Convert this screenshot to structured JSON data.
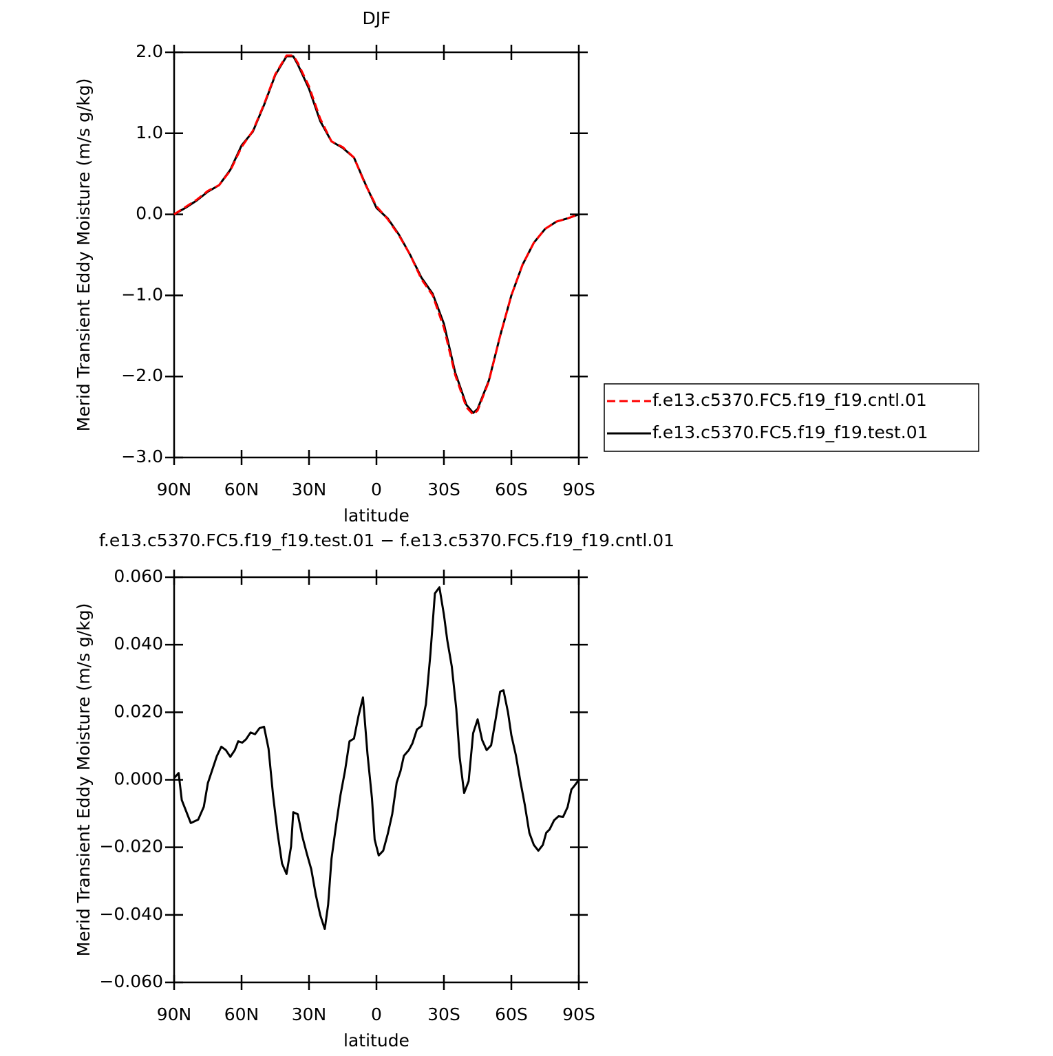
{
  "chart_data": [
    {
      "type": "line",
      "title": "DJF",
      "xlabel": "latitude",
      "ylabel": "Merid Transient Eddy Moisture (m/s g/kg)",
      "x": [
        90,
        85,
        80,
        75,
        70,
        65,
        60,
        55,
        50,
        45,
        40,
        37,
        35,
        30,
        25,
        20,
        15,
        10,
        5,
        0,
        -5,
        -10,
        -15,
        -20,
        -25,
        -30,
        -35,
        -40,
        -43,
        -45,
        -50,
        -55,
        -60,
        -65,
        -70,
        -75,
        -80,
        -85,
        -90
      ],
      "series": [
        {
          "name": "f.e13.c5370.FC5.f19_f19.cntl.01",
          "color": "#ff0000",
          "linestyle": "dashed",
          "values": [
            0.0,
            0.09,
            0.18,
            0.29,
            0.36,
            0.54,
            0.83,
            1.03,
            1.36,
            1.73,
            1.96,
            1.96,
            1.87,
            1.58,
            1.18,
            0.9,
            0.83,
            0.7,
            0.37,
            0.1,
            -0.06,
            -0.26,
            -0.5,
            -0.8,
            -1.0,
            -1.4,
            -1.98,
            -2.38,
            -2.47,
            -2.42,
            -2.06,
            -1.5,
            -1.0,
            -0.62,
            -0.35,
            -0.18,
            -0.09,
            -0.05,
            0.0
          ]
        },
        {
          "name": "f.e13.c5370.FC5.f19_f19.test.01",
          "color": "#000000",
          "linestyle": "solid",
          "values": [
            0.0,
            0.08,
            0.17,
            0.28,
            0.36,
            0.55,
            0.85,
            1.02,
            1.35,
            1.72,
            1.95,
            1.95,
            1.85,
            1.55,
            1.15,
            0.9,
            0.82,
            0.7,
            0.38,
            0.08,
            -0.05,
            -0.25,
            -0.5,
            -0.78,
            -0.98,
            -1.35,
            -1.95,
            -2.35,
            -2.45,
            -2.4,
            -2.05,
            -1.5,
            -1.0,
            -0.62,
            -0.35,
            -0.18,
            -0.09,
            -0.05,
            0.0
          ]
        }
      ],
      "xlim": [
        90,
        -90
      ],
      "xticks": [
        {
          "value": 90,
          "label": "90N"
        },
        {
          "value": 60,
          "label": "60N"
        },
        {
          "value": 30,
          "label": "30N"
        },
        0,
        {
          "value": -30,
          "label": "30S"
        },
        {
          "value": -60,
          "label": "60S"
        },
        {
          "value": -90,
          "label": "90S"
        }
      ],
      "ylim": [
        -3,
        2
      ],
      "yticks": [
        {
          "value": -3,
          "label": "−3.0"
        },
        {
          "value": -2,
          "label": "−2.0"
        },
        {
          "value": -1,
          "label": "−1.0"
        },
        {
          "value": 0,
          "label": "0.0"
        },
        {
          "value": 1,
          "label": "1.0"
        },
        {
          "value": 2,
          "label": "2.0"
        }
      ],
      "legend": "right"
    },
    {
      "type": "line",
      "title": "f.e13.c5370.FC5.f19_f19.test.01 − f.e13.c5370.FC5.f19_f19.cntl.01",
      "xlabel": "latitude",
      "ylabel": "Merid Transient Eddy Moisture (m/s g/kg)",
      "x": [
        90,
        88,
        86.6,
        82.6,
        79.3,
        76.8,
        75,
        73,
        71,
        69,
        67,
        65,
        63,
        61.5,
        59.7,
        58,
        56,
        54,
        52,
        50,
        48,
        46,
        44,
        42,
        40,
        38,
        37,
        35,
        33,
        31,
        29,
        27,
        25,
        23,
        21.5,
        20,
        18,
        16,
        14,
        12,
        10,
        8,
        6,
        4,
        2,
        0.8,
        -1,
        -3,
        -5,
        -7,
        -9,
        -10.7,
        -12.2,
        -14.4,
        -16,
        -18,
        -20,
        -22,
        -24,
        -26,
        -28,
        -30,
        -31.5,
        -33.5,
        -35.5,
        -37,
        -39,
        -41,
        -43,
        -45,
        -47,
        -49,
        -51,
        -53,
        -55,
        -56.5,
        -58.5,
        -60,
        -62,
        -64,
        -66,
        -68,
        -70,
        -72,
        -74,
        -75.5,
        -77,
        -79,
        -81,
        -83,
        -85,
        -86.7,
        -88.5,
        -90
      ],
      "series": [
        {
          "name": null,
          "color": "#000000",
          "linestyle": "solid",
          "values": [
            0.0005,
            0.002,
            -0.006,
            -0.0128,
            -0.0118,
            -0.008,
            -0.001,
            0.003,
            0.007,
            0.0098,
            0.0088,
            0.0068,
            0.0088,
            0.0114,
            0.011,
            0.012,
            0.014,
            0.0135,
            0.0153,
            0.0157,
            0.0092,
            -0.0045,
            -0.0157,
            -0.0248,
            -0.0279,
            -0.0198,
            -0.0096,
            -0.0102,
            -0.0167,
            -0.0218,
            -0.0265,
            -0.034,
            -0.0401,
            -0.0442,
            -0.037,
            -0.0234,
            -0.0136,
            -0.0045,
            0.0026,
            0.0114,
            0.0122,
            0.0189,
            0.0244,
            0.0077,
            -0.0055,
            -0.0177,
            -0.0224,
            -0.021,
            -0.0161,
            -0.0102,
            -0.0008,
            0.0026,
            0.0071,
            0.0088,
            0.0108,
            0.0149,
            0.0159,
            0.0224,
            0.0373,
            0.0552,
            0.057,
            0.0489,
            0.0413,
            0.0336,
            0.021,
            0.0067,
            -0.0039,
            -0.0004,
            0.0138,
            0.0179,
            0.0118,
            0.0088,
            0.0102,
            0.0179,
            0.0261,
            0.0265,
            0.02,
            0.0132,
            0.0073,
            -0.0004,
            -0.0075,
            -0.0157,
            -0.0193,
            -0.021,
            -0.0193,
            -0.0157,
            -0.0147,
            -0.012,
            -0.0108,
            -0.011,
            -0.0081,
            -0.0029,
            -0.0014,
            0.0
          ]
        }
      ],
      "xlim": [
        90,
        -90
      ],
      "xticks": [
        {
          "value": 90,
          "label": "90N"
        },
        {
          "value": 60,
          "label": "60N"
        },
        {
          "value": 30,
          "label": "30N"
        },
        0,
        {
          "value": -30,
          "label": "30S"
        },
        {
          "value": -60,
          "label": "60S"
        },
        {
          "value": -90,
          "label": "90S"
        }
      ],
      "ylim": [
        -0.06,
        0.06
      ],
      "yticks": [
        {
          "value": -0.06,
          "label": "−0.060"
        },
        {
          "value": -0.04,
          "label": "−0.040"
        },
        {
          "value": -0.02,
          "label": "−0.020"
        },
        {
          "value": 0,
          "label": "0.000"
        },
        {
          "value": 0.02,
          "label": "0.020"
        },
        {
          "value": 0.04,
          "label": "0.040"
        },
        {
          "value": 0.06,
          "label": "0.060"
        }
      ]
    }
  ]
}
